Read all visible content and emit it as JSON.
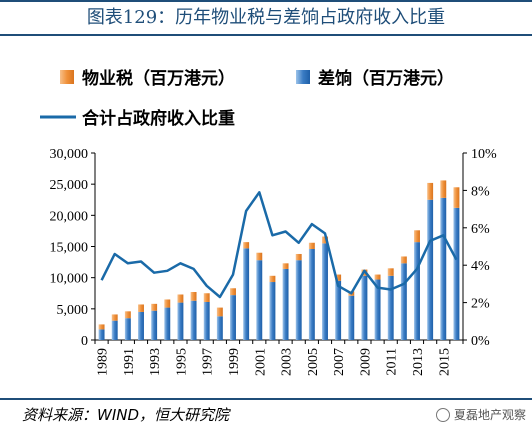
{
  "figure_title": "图表129：历年物业税与差饷占政府收入比重",
  "source": "资料来源：WIND，恒大研究院",
  "watermark": "夏磊地产观察",
  "colors": {
    "property_tax": "#f0913a",
    "rates": "#3a7cc4",
    "ratio_line": "#1a6aa8",
    "frame": "#1f4e79"
  },
  "chart_data": {
    "type": "bar",
    "stacked": true,
    "x": [
      1989,
      1990,
      1991,
      1992,
      1993,
      1994,
      1995,
      1996,
      1997,
      1998,
      1999,
      2000,
      2001,
      2002,
      2003,
      2004,
      2005,
      2006,
      2007,
      2008,
      2009,
      2010,
      2011,
      2012,
      2013,
      2014,
      2015,
      2016
    ],
    "xticklabels": [
      "1989",
      "1991",
      "1993",
      "1995",
      "1997",
      "1999",
      "2001",
      "2003",
      "2005",
      "2007",
      "2009",
      "2011",
      "2013",
      "2015"
    ],
    "series": [
      {
        "name": "差饷（百万港元）",
        "axis": "left",
        "type": "bar",
        "values": [
          1700,
          3100,
          3500,
          4500,
          4700,
          5200,
          6000,
          6300,
          6100,
          3800,
          7200,
          14700,
          12800,
          9300,
          11400,
          12800,
          14600,
          15500,
          9500,
          7100,
          10300,
          9700,
          10300,
          12300,
          15700,
          22500,
          22800,
          21200
        ]
      },
      {
        "name": "物业税（百万港元）",
        "axis": "left",
        "type": "bar",
        "values": [
          800,
          1000,
          1100,
          1200,
          1100,
          1300,
          1300,
          1400,
          1400,
          1400,
          1100,
          1000,
          1200,
          1000,
          900,
          1000,
          1000,
          1100,
          1000,
          700,
          1000,
          800,
          1200,
          1100,
          1900,
          2700,
          2800,
          3300
        ]
      },
      {
        "name": "合计占政府收入比重",
        "axis": "right",
        "type": "line",
        "values": [
          3.2,
          4.6,
          4.1,
          4.2,
          3.6,
          3.7,
          4.1,
          3.8,
          2.9,
          2.3,
          3.5,
          6.9,
          7.9,
          5.6,
          5.8,
          5.2,
          6.2,
          5.7,
          2.9,
          2.5,
          3.7,
          2.8,
          2.7,
          3.0,
          3.8,
          5.3,
          5.6,
          4.3
        ]
      }
    ],
    "y_left": {
      "lim": [
        0,
        30000
      ],
      "ticks": [
        "0",
        "5,000",
        "10,000",
        "15,000",
        "20,000",
        "25,000",
        "30,000"
      ]
    },
    "y_right": {
      "lim": [
        0,
        10
      ],
      "ticks": [
        "0%",
        "2%",
        "4%",
        "6%",
        "8%",
        "10%"
      ]
    },
    "legend": {
      "placement": "top",
      "items": [
        "物业税（百万港元）",
        "差饷（百万港元）",
        "合计占政府收入比重"
      ]
    },
    "grid": false
  }
}
